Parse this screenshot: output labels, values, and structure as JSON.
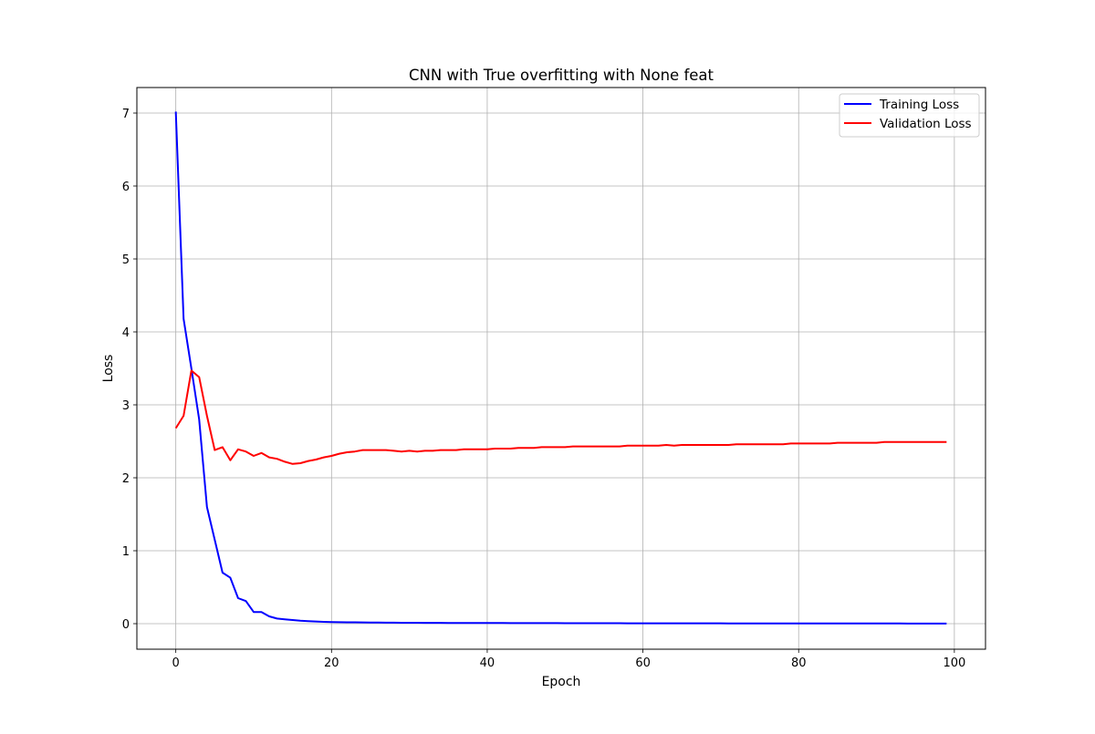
{
  "chart_data": {
    "type": "line",
    "title": "CNN with True overfitting with None feat",
    "xlabel": "Epoch",
    "ylabel": "Loss",
    "xlim": [
      -5,
      104
    ],
    "ylim": [
      -0.35,
      7.35
    ],
    "xticks": [
      0,
      20,
      40,
      60,
      80,
      100
    ],
    "yticks": [
      0,
      1,
      2,
      3,
      4,
      5,
      6,
      7
    ],
    "grid": true,
    "legend_position": "upper right",
    "x": [
      0,
      1,
      2,
      3,
      4,
      5,
      6,
      7,
      8,
      9,
      10,
      11,
      12,
      13,
      14,
      15,
      16,
      17,
      18,
      19,
      20,
      21,
      22,
      23,
      24,
      25,
      26,
      27,
      28,
      29,
      30,
      31,
      32,
      33,
      34,
      35,
      36,
      37,
      38,
      39,
      40,
      41,
      42,
      43,
      44,
      45,
      46,
      47,
      48,
      49,
      50,
      51,
      52,
      53,
      54,
      55,
      56,
      57,
      58,
      59,
      60,
      61,
      62,
      63,
      64,
      65,
      66,
      67,
      68,
      69,
      70,
      71,
      72,
      73,
      74,
      75,
      76,
      77,
      78,
      79,
      80,
      81,
      82,
      83,
      84,
      85,
      86,
      87,
      88,
      89,
      90,
      91,
      92,
      93,
      94,
      95,
      96,
      97,
      98,
      99
    ],
    "series": [
      {
        "name": "Training Loss",
        "color": "#0000ff",
        "values": [
          7.02,
          4.18,
          3.5,
          2.8,
          1.6,
          1.15,
          0.7,
          0.63,
          0.35,
          0.31,
          0.16,
          0.16,
          0.1,
          0.07,
          0.06,
          0.05,
          0.04,
          0.035,
          0.03,
          0.025,
          0.022,
          0.02,
          0.019,
          0.018,
          0.017,
          0.016,
          0.015,
          0.014,
          0.0135,
          0.013,
          0.0125,
          0.012,
          0.0115,
          0.011,
          0.0105,
          0.01,
          0.0098,
          0.0096,
          0.0094,
          0.0092,
          0.009,
          0.0088,
          0.0086,
          0.0084,
          0.0082,
          0.008,
          0.0078,
          0.0076,
          0.0074,
          0.0072,
          0.007,
          0.0068,
          0.0066,
          0.0064,
          0.0062,
          0.006,
          0.0058,
          0.0056,
          0.0054,
          0.0052,
          0.005,
          0.0049,
          0.0048,
          0.0047,
          0.0046,
          0.0045,
          0.0044,
          0.0043,
          0.0042,
          0.0041,
          0.004,
          0.0039,
          0.0038,
          0.0037,
          0.0036,
          0.0035,
          0.0034,
          0.0033,
          0.0032,
          0.0031,
          0.003,
          0.003,
          0.0029,
          0.0029,
          0.0028,
          0.0028,
          0.0027,
          0.0027,
          0.0026,
          0.0026,
          0.0025,
          0.0025,
          0.0024,
          0.0024,
          0.0023,
          0.0023,
          0.0022,
          0.0022,
          0.0021,
          0.0021
        ]
      },
      {
        "name": "Validation Loss",
        "color": "#ff0000",
        "values": [
          2.68,
          2.85,
          3.47,
          3.38,
          2.85,
          2.38,
          2.42,
          2.24,
          2.39,
          2.36,
          2.3,
          2.34,
          2.28,
          2.26,
          2.22,
          2.19,
          2.2,
          2.23,
          2.25,
          2.28,
          2.3,
          2.33,
          2.35,
          2.36,
          2.38,
          2.38,
          2.38,
          2.38,
          2.37,
          2.36,
          2.37,
          2.36,
          2.37,
          2.37,
          2.38,
          2.38,
          2.38,
          2.39,
          2.39,
          2.39,
          2.39,
          2.4,
          2.4,
          2.4,
          2.41,
          2.41,
          2.41,
          2.42,
          2.42,
          2.42,
          2.42,
          2.43,
          2.43,
          2.43,
          2.43,
          2.43,
          2.43,
          2.43,
          2.44,
          2.44,
          2.44,
          2.44,
          2.44,
          2.45,
          2.44,
          2.45,
          2.45,
          2.45,
          2.45,
          2.45,
          2.45,
          2.45,
          2.46,
          2.46,
          2.46,
          2.46,
          2.46,
          2.46,
          2.46,
          2.47,
          2.47,
          2.47,
          2.47,
          2.47,
          2.47,
          2.48,
          2.48,
          2.48,
          2.48,
          2.48,
          2.48,
          2.49,
          2.49,
          2.49,
          2.49,
          2.49,
          2.49,
          2.49,
          2.49,
          2.49
        ]
      }
    ]
  }
}
